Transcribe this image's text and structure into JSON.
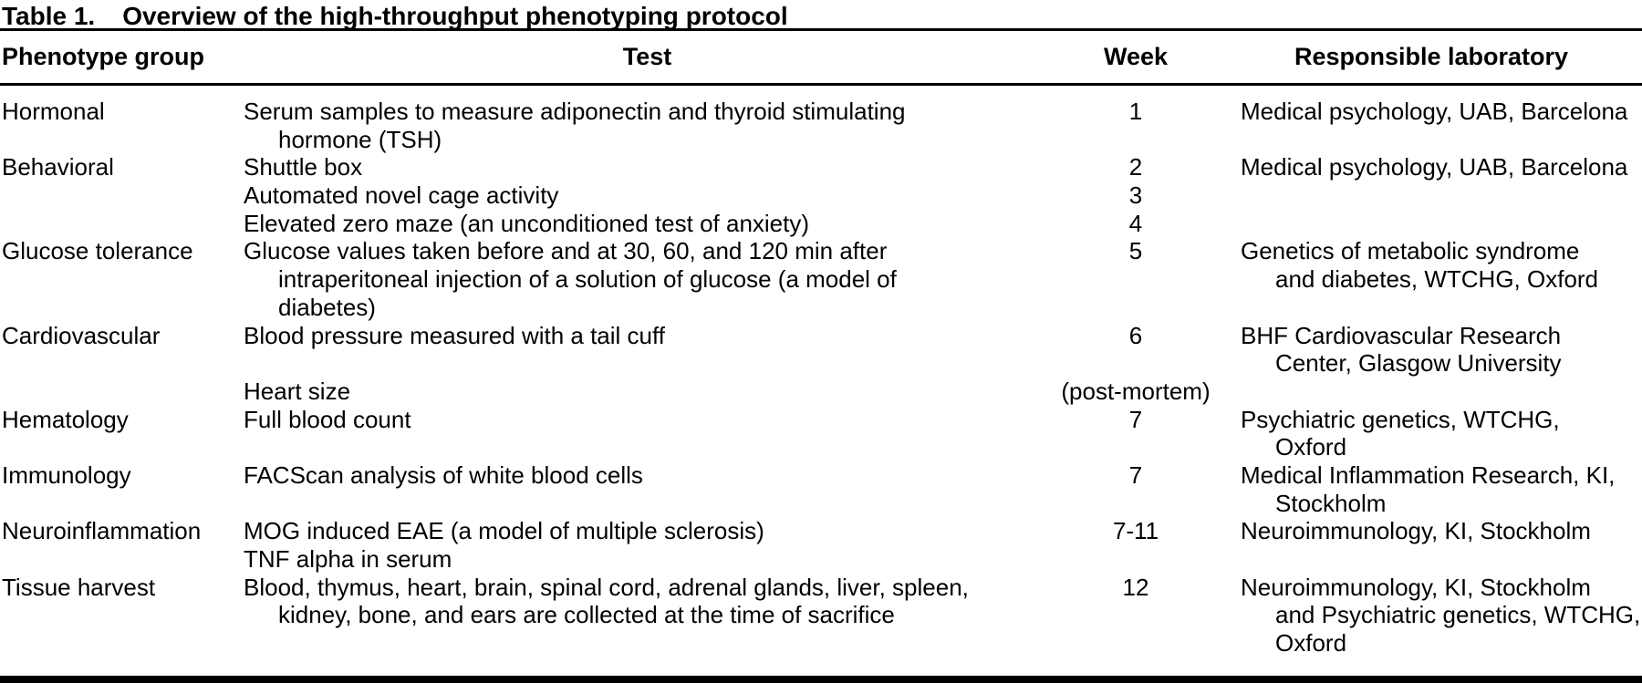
{
  "colors": {
    "background": "#ffffff",
    "text": "#000000",
    "rule": "#000000"
  },
  "title": {
    "label": "Table 1.",
    "caption": "Overview of the high-throughput phenotyping protocol"
  },
  "header": {
    "phenotype_group": "Phenotype group",
    "test": "Test",
    "week": "Week",
    "lab": "Responsible laboratory"
  },
  "rows": [
    {
      "group": "Hormonal",
      "test_lines": [
        {
          "text": "Serum samples to measure adiponectin and thyroid stimulating",
          "indent": false
        },
        {
          "text": "hormone (TSH)",
          "indent": true
        }
      ],
      "week_lines": [
        "1"
      ],
      "lab_lines": [
        {
          "text": "Medical psychology, UAB, Barcelona",
          "indent": false
        }
      ]
    },
    {
      "group": "Behavioral",
      "test_lines": [
        {
          "text": "Shuttle box",
          "indent": false
        },
        {
          "text": "Automated novel cage activity",
          "indent": false
        },
        {
          "text": "Elevated zero maze (an unconditioned test of anxiety)",
          "indent": false
        }
      ],
      "week_lines": [
        "2",
        "3",
        "4"
      ],
      "lab_lines": [
        {
          "text": "Medical psychology, UAB, Barcelona",
          "indent": false
        }
      ]
    },
    {
      "group": "Glucose tolerance",
      "test_lines": [
        {
          "text": "Glucose values taken before and at 30, 60, and 120 min after",
          "indent": false
        },
        {
          "text": "intraperitoneal injection of a solution of glucose (a model of",
          "indent": true
        },
        {
          "text": "diabetes)",
          "indent": true
        }
      ],
      "week_lines": [
        "5"
      ],
      "lab_lines": [
        {
          "text": "Genetics of metabolic syndrome",
          "indent": false
        },
        {
          "text": "and diabetes, WTCHG, Oxford",
          "indent": true
        }
      ]
    },
    {
      "group": "Cardiovascular",
      "test_lines": [
        {
          "text": "Blood pressure measured with a tail cuff",
          "indent": false
        },
        {
          "text": "",
          "indent": false
        },
        {
          "text": "Heart size",
          "indent": false
        }
      ],
      "week_lines": [
        "6",
        "",
        "(post-mortem)"
      ],
      "lab_lines": [
        {
          "text": "BHF Cardiovascular Research",
          "indent": false
        },
        {
          "text": "Center, Glasgow University",
          "indent": true
        }
      ]
    },
    {
      "group": "Hematology",
      "test_lines": [
        {
          "text": "Full blood count",
          "indent": false
        }
      ],
      "week_lines": [
        "7"
      ],
      "lab_lines": [
        {
          "text": "Psychiatric genetics, WTCHG,",
          "indent": false
        },
        {
          "text": "Oxford",
          "indent": true
        }
      ]
    },
    {
      "group": "Immunology",
      "test_lines": [
        {
          "text": "FACScan analysis of white blood cells",
          "indent": false
        }
      ],
      "week_lines": [
        "7"
      ],
      "lab_lines": [
        {
          "text": "Medical Inflammation Research, KI,",
          "indent": false
        },
        {
          "text": "Stockholm",
          "indent": true
        }
      ]
    },
    {
      "group": "Neuroinflammation",
      "test_lines": [
        {
          "text": "MOG induced EAE (a model of multiple sclerosis)",
          "indent": false
        },
        {
          "text": "TNF alpha in serum",
          "indent": false
        }
      ],
      "week_lines": [
        "7-11"
      ],
      "lab_lines": [
        {
          "text": "Neuroimmunology, KI, Stockholm",
          "indent": false
        }
      ]
    },
    {
      "group": "Tissue harvest",
      "test_lines": [
        {
          "text": "Blood, thymus, heart, brain, spinal cord, adrenal glands, liver, spleen,",
          "indent": false
        },
        {
          "text": "kidney, bone, and ears are collected at the time of sacrifice",
          "indent": true
        }
      ],
      "week_lines": [
        "12"
      ],
      "lab_lines": [
        {
          "text": "Neuroimmunology, KI, Stockholm",
          "indent": false
        },
        {
          "text": "and Psychiatric genetics, WTCHG,",
          "indent": true
        },
        {
          "text": "Oxford",
          "indent": true
        }
      ]
    }
  ]
}
